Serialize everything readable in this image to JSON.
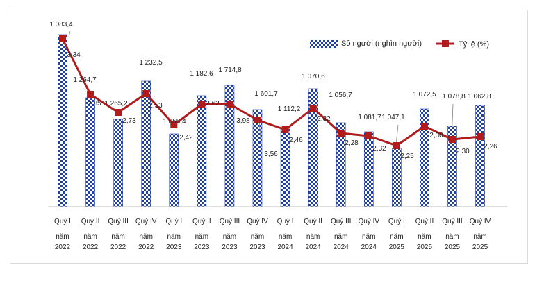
{
  "chart_data": {
    "type": "bar",
    "categories": [
      [
        "Quý I",
        "năm",
        "2022"
      ],
      [
        "Quý II",
        "năm",
        "2022"
      ],
      [
        "Quý III",
        "năm",
        "2022"
      ],
      [
        "Quý IV",
        "năm",
        "2022"
      ],
      [
        "Quý I",
        "năm",
        "2023"
      ],
      [
        "Quý II",
        "năm",
        "2023"
      ],
      [
        "Quý III",
        "năm",
        "2023"
      ],
      [
        "Quý IV",
        "năm",
        "2023"
      ],
      [
        "Quý I",
        "năm",
        "2024"
      ],
      [
        "Quý II",
        "năm",
        "2024"
      ],
      [
        "Quý III",
        "năm",
        "2024"
      ],
      [
        "Quý IV",
        "năm",
        "2024"
      ],
      [
        "Quý I",
        "năm",
        "2025"
      ],
      [
        "Quý II",
        "năm",
        "2025"
      ],
      [
        "Quý III",
        "năm",
        "2025"
      ],
      [
        "Quý IV",
        "năm",
        "2025"
      ]
    ],
    "series": [
      {
        "name": "Số người (nghìn người)",
        "type": "bar",
        "values": [
          1083.4,
          1264.7,
          1265.2,
          1232.5,
          1055.4,
          1182.6,
          1714.8,
          1601.7,
          1112.2,
          1070.6,
          1056.7,
          1081.7,
          1047.1,
          1072.5,
          1078.8,
          1062.8
        ],
        "labels": [
          "1 083,4",
          "1 264,7",
          "1 265,2",
          "1 232,5",
          "1 055,4",
          "1 182,6",
          "1 714,8",
          "1 601,7",
          "1 112,2",
          "1 070,6",
          "1 056,7",
          "1 081,7",
          "1 047,1",
          "1 072,5",
          "1 078,8",
          "1 062,8"
        ],
        "bar_heights_relative": [
          248,
          157,
          126,
          181,
          105,
          160,
          175,
          140,
          112,
          170,
          121,
          108,
          84,
          141,
          116,
          146
        ],
        "color": "#1f3fa3"
      },
      {
        "name": "Tỷ lệ (%)",
        "type": "line",
        "values": [
          3.34,
          2.85,
          2.73,
          2.53,
          2.42,
          2.62,
          3.98,
          3.56,
          2.46,
          2.32,
          2.28,
          2.32,
          2.25,
          2.3,
          2.3,
          2.26
        ],
        "labels": [
          "3,34",
          "2,85",
          "2,73",
          "2,53",
          "2,42",
          "2,62",
          "3,98",
          "3,56",
          "2,46",
          "2,32",
          "2,28",
          "2,32",
          "2,25",
          "2,30",
          "2,30",
          "2,26"
        ],
        "line_levels_relative": [
          242,
          162,
          136,
          163,
          118,
          148,
          148,
          125,
          111,
          142,
          106,
          102,
          88,
          116,
          97,
          101
        ],
        "color": "#b01c1c"
      }
    ],
    "legend": {
      "placement": "top-right"
    },
    "grid": false
  }
}
